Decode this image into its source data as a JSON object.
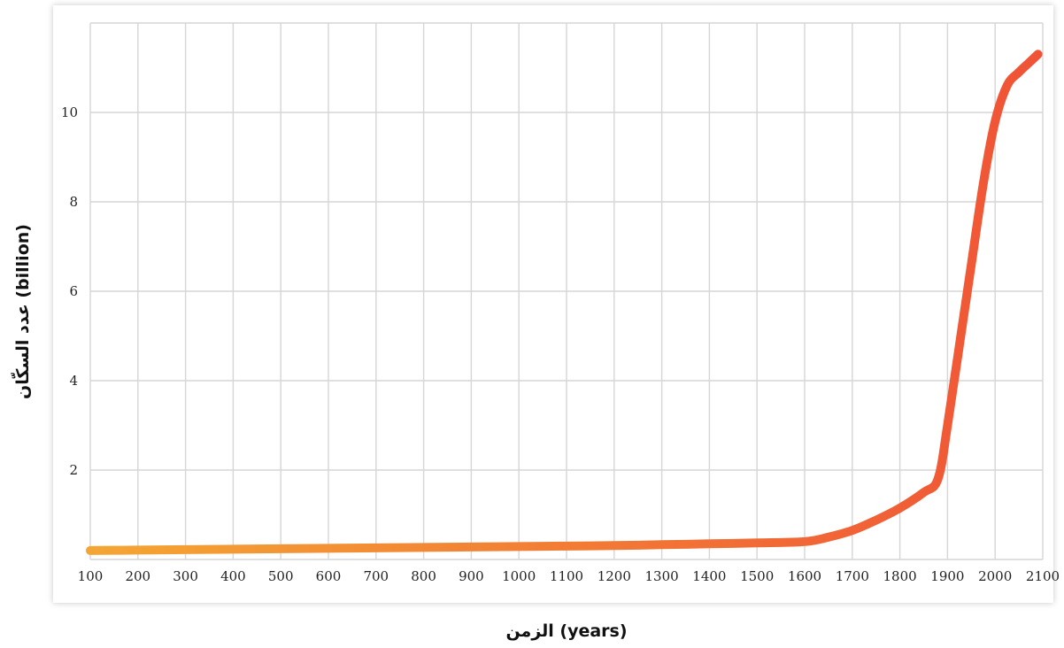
{
  "chart_data": {
    "type": "line",
    "title": "",
    "xlabel": "الزمن (years)",
    "ylabel": "عدد السكّان (billion)",
    "xlim": [
      100,
      2100
    ],
    "ylim": [
      0,
      12
    ],
    "x_ticks": [
      100,
      200,
      300,
      400,
      500,
      600,
      700,
      800,
      900,
      1000,
      1100,
      1200,
      1300,
      1400,
      1500,
      1600,
      1700,
      1800,
      1900,
      2000,
      2100
    ],
    "y_ticks": [
      2,
      4,
      6,
      8,
      10
    ],
    "grid": true,
    "legend": "none",
    "series": [
      {
        "x": [
          100,
          200,
          300,
          400,
          500,
          600,
          700,
          800,
          900,
          1000,
          1100,
          1200,
          1300,
          1400,
          1500,
          1600,
          1650,
          1700,
          1750,
          1800,
          1850,
          1880,
          1900,
          1925,
          1950,
          1975,
          2000,
          2025,
          2050,
          2075,
          2090
        ],
        "y": [
          0.2,
          0.21,
          0.22,
          0.23,
          0.24,
          0.25,
          0.26,
          0.27,
          0.28,
          0.29,
          0.3,
          0.31,
          0.33,
          0.35,
          0.37,
          0.4,
          0.5,
          0.65,
          0.88,
          1.15,
          1.5,
          1.8,
          3.0,
          4.8,
          6.6,
          8.4,
          9.8,
          10.6,
          10.9,
          11.15,
          11.3
        ],
        "color_start": "#f4a634",
        "color_end": "#f05236"
      }
    ]
  }
}
